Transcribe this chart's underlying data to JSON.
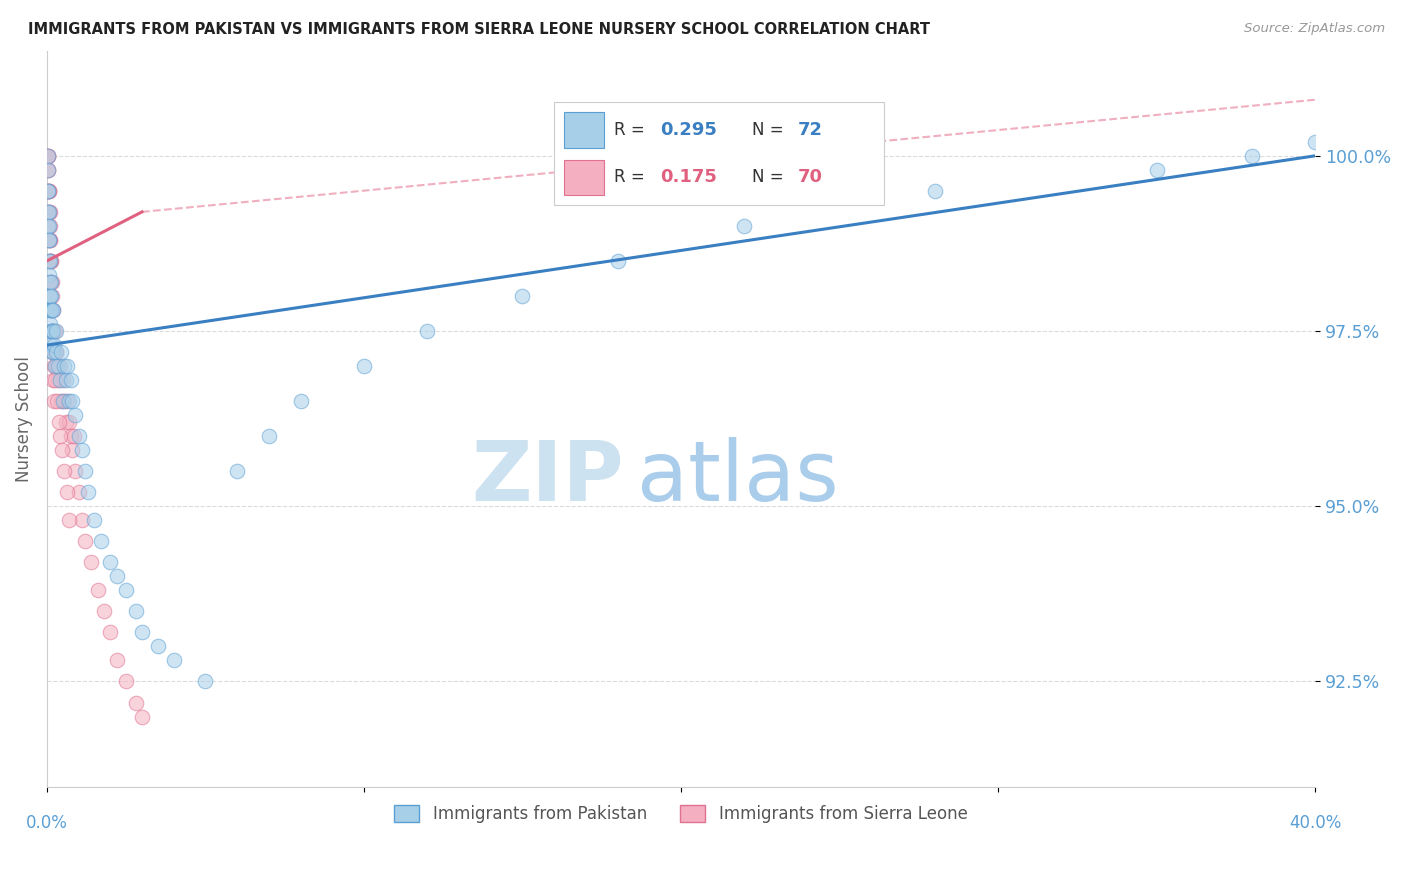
{
  "title": "IMMIGRANTS FROM PAKISTAN VS IMMIGRANTS FROM SIERRA LEONE NURSERY SCHOOL CORRELATION CHART",
  "source": "Source: ZipAtlas.com",
  "ylabel": "Nursery School",
  "xlim": [
    0.0,
    40.0
  ],
  "ylim": [
    91.0,
    101.5
  ],
  "yticks": [
    92.5,
    95.0,
    97.5,
    100.0
  ],
  "ytick_labels": [
    "92.5%",
    "95.0%",
    "97.5%",
    "100.0%"
  ],
  "legend_label1": "Immigrants from Pakistan",
  "legend_label2": "Immigrants from Sierra Leone",
  "color_blue": "#a8cfe8",
  "color_pink": "#f4b0c0",
  "color_blue_edge": "#5a9fd4",
  "color_pink_edge": "#e07090",
  "color_blue_line": "#3a7fc1",
  "color_pink_line": "#e06080",
  "color_axis_labels": "#5a9fd4",
  "watermark_zip_color": "#c8dff0",
  "watermark_atlas_color": "#a0c8e8",
  "pakistan_x": [
    0.02,
    0.03,
    0.04,
    0.04,
    0.05,
    0.05,
    0.06,
    0.06,
    0.07,
    0.07,
    0.08,
    0.08,
    0.09,
    0.09,
    0.1,
    0.1,
    0.11,
    0.11,
    0.12,
    0.12,
    0.13,
    0.13,
    0.14,
    0.14,
    0.15,
    0.15,
    0.16,
    0.17,
    0.18,
    0.19,
    0.2,
    0.22,
    0.25,
    0.28,
    0.3,
    0.35,
    0.4,
    0.45,
    0.5,
    0.55,
    0.6,
    0.65,
    0.7,
    0.75,
    0.8,
    0.9,
    1.0,
    1.1,
    1.2,
    1.3,
    1.5,
    1.7,
    2.0,
    2.2,
    2.5,
    2.8,
    3.0,
    3.5,
    4.0,
    5.0,
    6.0,
    7.0,
    8.0,
    10.0,
    12.0,
    15.0,
    18.0,
    22.0,
    28.0,
    35.0,
    38.0,
    40.0
  ],
  "pakistan_y": [
    99.5,
    100.0,
    99.8,
    99.2,
    99.5,
    99.0,
    98.8,
    99.2,
    98.5,
    99.0,
    98.3,
    98.8,
    98.0,
    98.5,
    98.2,
    97.8,
    98.0,
    97.6,
    97.8,
    98.2,
    97.5,
    98.0,
    97.3,
    97.8,
    97.5,
    97.2,
    97.8,
    97.5,
    97.2,
    97.8,
    97.5,
    97.3,
    97.0,
    97.5,
    97.2,
    97.0,
    96.8,
    97.2,
    96.5,
    97.0,
    96.8,
    97.0,
    96.5,
    96.8,
    96.5,
    96.3,
    96.0,
    95.8,
    95.5,
    95.2,
    94.8,
    94.5,
    94.2,
    94.0,
    93.8,
    93.5,
    93.2,
    93.0,
    92.8,
    92.5,
    95.5,
    96.0,
    96.5,
    97.0,
    97.5,
    98.0,
    98.5,
    99.0,
    99.5,
    99.8,
    100.0,
    100.2
  ],
  "sierraleone_x": [
    0.02,
    0.03,
    0.04,
    0.05,
    0.05,
    0.06,
    0.07,
    0.08,
    0.08,
    0.09,
    0.09,
    0.1,
    0.1,
    0.11,
    0.12,
    0.13,
    0.14,
    0.15,
    0.16,
    0.17,
    0.18,
    0.19,
    0.2,
    0.22,
    0.25,
    0.28,
    0.3,
    0.35,
    0.4,
    0.45,
    0.5,
    0.55,
    0.6,
    0.65,
    0.7,
    0.75,
    0.8,
    0.85,
    0.9,
    1.0,
    1.1,
    1.2,
    1.4,
    1.6,
    1.8,
    2.0,
    2.2,
    2.5,
    2.8,
    3.0,
    0.04,
    0.06,
    0.07,
    0.08,
    0.09,
    0.11,
    0.12,
    0.14,
    0.16,
    0.18,
    0.21,
    0.24,
    0.27,
    0.32,
    0.38,
    0.42,
    0.48,
    0.55,
    0.62,
    0.7
  ],
  "sierraleone_y": [
    100.0,
    99.8,
    100.0,
    99.5,
    99.8,
    99.5,
    99.2,
    99.5,
    99.0,
    99.2,
    98.8,
    99.0,
    98.5,
    98.8,
    98.5,
    98.2,
    98.5,
    98.2,
    97.8,
    98.0,
    97.5,
    97.8,
    97.5,
    97.2,
    97.5,
    97.2,
    97.0,
    96.8,
    97.0,
    96.5,
    96.8,
    96.5,
    96.2,
    96.5,
    96.2,
    96.0,
    95.8,
    96.0,
    95.5,
    95.2,
    94.8,
    94.5,
    94.2,
    93.8,
    93.5,
    93.2,
    92.8,
    92.5,
    92.2,
    92.0,
    100.0,
    99.5,
    99.2,
    98.8,
    98.5,
    98.2,
    97.8,
    97.5,
    97.2,
    96.8,
    97.0,
    96.5,
    96.8,
    96.5,
    96.2,
    96.0,
    95.8,
    95.5,
    95.2,
    94.8
  ],
  "blue_line_x0": 0.0,
  "blue_line_y0": 97.3,
  "blue_line_x1": 40.0,
  "blue_line_y1": 100.0,
  "pink_line_x0": 0.0,
  "pink_line_y0": 98.5,
  "pink_line_x1": 3.0,
  "pink_line_y1": 99.2,
  "pink_dash_x0": 3.0,
  "pink_dash_y0": 99.2,
  "pink_dash_x1": 40.0,
  "pink_dash_y1": 100.8
}
